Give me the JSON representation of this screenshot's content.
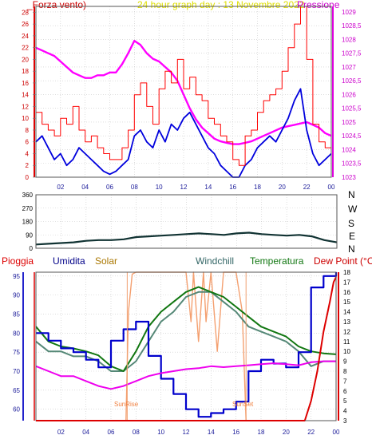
{
  "header": {
    "left": "_Forza vento)",
    "center": "24 hour graph day : 13 Novembre 2022",
    "right": "Pressione"
  },
  "cardinals": [
    "N",
    "W",
    "S",
    "E",
    "N"
  ],
  "bottom_labels": {
    "pioggia": "Pioggia",
    "umidita": "Umidita",
    "solar": "Solar",
    "windchill": "Windchill",
    "temperatura": "Temperatura",
    "dewpoint": "Dew Point (°C)",
    "sunrise": "SunRise",
    "sunset": "SunSet"
  },
  "colors": {
    "frame": "#555555",
    "wind": "#ff0000",
    "gust": "#0000dd",
    "pressure": "#ff00ff",
    "direction": "#113333",
    "humidity": "#0000cc",
    "temperature": "#117711",
    "windchill": "#558877",
    "solar": "#f4a070",
    "rain": "#dd0000",
    "dewpoint": "#ee00ee"
  },
  "chart_data": [
    {
      "type": "line",
      "title": "24 hour graph day : 13 Novembre 2022",
      "x_ticks": [
        "02",
        "04",
        "06",
        "08",
        "10",
        "12",
        "14",
        "16",
        "18",
        "20",
        "22",
        "00"
      ],
      "y_left_ticks": [
        "0",
        "2",
        "4",
        "6",
        "8",
        "10",
        "12",
        "14",
        "16",
        "18",
        "20",
        "22",
        "24",
        "26",
        "28"
      ],
      "y_left_label": "_Forza vento)",
      "y_left_range": [
        0,
        29
      ],
      "y_right_ticks": [
        "1023",
        "1023,5",
        "1024",
        "1024,5",
        "1025",
        "1025,5",
        "1026",
        "1026,5",
        "1027",
        "1027,5",
        "1028",
        "1028,5",
        "1029"
      ],
      "y_right_label": "Pressione",
      "y_right_range": [
        1023,
        1029.2
      ],
      "x_range": [
        0,
        24
      ],
      "series": [
        {
          "name": "Pressione",
          "axis": "right",
          "color": "#ff00ff",
          "x": [
            0,
            0.5,
            1,
            1.5,
            2,
            2.5,
            3,
            3.5,
            4,
            4.5,
            5,
            5.5,
            6,
            6.5,
            7,
            7.5,
            8,
            8.5,
            9,
            9.5,
            10,
            10.5,
            11,
            11.5,
            12,
            12.5,
            13,
            13.5,
            14,
            14.5,
            15,
            15.5,
            16,
            16.5,
            17,
            17.5,
            18,
            18.5,
            19,
            19.5,
            20,
            20.5,
            21,
            21.5,
            22,
            22.5,
            23,
            23.5,
            24
          ],
          "y": [
            1027.7,
            1027.6,
            1027.5,
            1027.4,
            1027.2,
            1027,
            1026.8,
            1026.7,
            1026.6,
            1026.6,
            1026.7,
            1026.7,
            1026.8,
            1026.8,
            1027.1,
            1027.5,
            1027.95,
            1027.8,
            1027.5,
            1027.3,
            1027.2,
            1027,
            1026.8,
            1026.5,
            1026,
            1025.5,
            1025.1,
            1024.8,
            1024.6,
            1024.4,
            1024.3,
            1024.25,
            1024.2,
            1024.2,
            1024.25,
            1024.3,
            1024.4,
            1024.5,
            1024.6,
            1024.7,
            1024.8,
            1024.85,
            1024.9,
            1024.95,
            1025,
            1024.9,
            1024.8,
            1024.6,
            1024.5
          ]
        },
        {
          "name": "Forza vento media",
          "axis": "left",
          "color": "#0000dd",
          "x": [
            0,
            0.5,
            1,
            1.5,
            2,
            2.5,
            3,
            3.5,
            4,
            4.5,
            5,
            5.5,
            6,
            6.5,
            7,
            7.5,
            8,
            8.5,
            9,
            9.5,
            10,
            10.5,
            11,
            11.5,
            12,
            12.5,
            13,
            13.5,
            14,
            14.5,
            15,
            15.5,
            16,
            16.5,
            17,
            17.5,
            18,
            18.5,
            19,
            19.5,
            20,
            20.5,
            21,
            21.5,
            22,
            22.5,
            23,
            23.5,
            24
          ],
          "y": [
            6,
            7,
            5,
            3,
            4,
            2,
            3,
            5,
            4,
            3,
            2,
            1,
            0.5,
            1,
            2,
            3,
            7,
            8,
            6,
            5,
            8,
            6,
            9,
            8,
            10,
            11,
            9,
            7,
            5,
            4,
            2,
            1,
            0,
            0,
            2,
            3,
            5,
            6,
            7,
            6,
            8,
            10,
            13,
            15,
            8,
            4,
            2,
            3,
            4
          ]
        },
        {
          "name": "Forza vento raffica",
          "axis": "left",
          "color": "#ff0000",
          "x": [
            0,
            0.5,
            1,
            1.5,
            2,
            2.5,
            3,
            3.5,
            4,
            4.5,
            5,
            5.5,
            6,
            6.5,
            7,
            7.5,
            8,
            8.5,
            9,
            9.5,
            10,
            10.5,
            11,
            11.5,
            12,
            12.5,
            13,
            13.5,
            14,
            14.5,
            15,
            15.5,
            16,
            16.5,
            17,
            17.5,
            18,
            18.5,
            19,
            19.5,
            20,
            20.5,
            21,
            21.5,
            22,
            22.5,
            23,
            23.5,
            24
          ],
          "y": [
            11,
            9,
            8,
            7,
            10,
            9,
            12,
            8,
            6,
            7,
            5,
            4,
            3,
            3,
            5,
            8,
            14,
            16,
            12,
            9,
            15,
            18,
            16,
            20,
            15,
            17,
            14,
            13,
            10,
            9,
            7,
            6,
            3,
            2,
            7,
            8,
            11,
            13,
            14,
            15,
            18,
            22,
            26,
            29,
            20,
            9,
            6,
            5,
            7
          ]
        }
      ]
    },
    {
      "type": "line",
      "title": "",
      "y_left_ticks": [
        "0",
        "90",
        "180",
        "270",
        "360"
      ],
      "y_left_range": [
        0,
        360
      ],
      "y_right_ticks": [
        "N",
        "W",
        "S",
        "E",
        "N"
      ],
      "x_range": [
        0,
        24
      ],
      "series": [
        {
          "name": "Direzione vento",
          "color": "#113333",
          "x": [
            0,
            1,
            2,
            3,
            4,
            5,
            6,
            7,
            8,
            9,
            10,
            11,
            12,
            13,
            14,
            15,
            16,
            17,
            18,
            19,
            20,
            21,
            22,
            23,
            24
          ],
          "y": [
            25,
            30,
            35,
            40,
            50,
            55,
            55,
            60,
            75,
            80,
            85,
            90,
            95,
            100,
            95,
            90,
            100,
            105,
            95,
            90,
            85,
            90,
            80,
            55,
            40
          ]
        }
      ]
    },
    {
      "type": "line",
      "title": "",
      "x_ticks": [
        "02",
        "04",
        "06",
        "08",
        "10",
        "12",
        "14",
        "16",
        "18",
        "20",
        "22",
        "00"
      ],
      "y_left_ticks": [
        "60",
        "65",
        "70",
        "75",
        "80",
        "85",
        "90",
        "95"
      ],
      "y_left_label": "Umidita",
      "y_left_range": [
        57,
        96
      ],
      "y_right_ticks": [
        "3",
        "4",
        "5",
        "6",
        "7",
        "8",
        "9",
        "10",
        "11",
        "12",
        "13",
        "14",
        "15",
        "16",
        "17",
        "18"
      ],
      "y_right_label": "Dew Point (°C)",
      "y_right_range": [
        3,
        18
      ],
      "x_range": [
        0,
        24
      ],
      "annotations": [
        "SunRise",
        "SunSet"
      ],
      "series": [
        {
          "name": "Umidita",
          "axis": "left",
          "color": "#0000cc",
          "x": [
            0,
            1,
            2,
            3,
            4,
            5,
            6,
            7,
            8,
            9,
            10,
            11,
            12,
            13,
            14,
            15,
            16,
            17,
            18,
            19,
            20,
            21,
            22,
            23,
            24
          ],
          "y": [
            80,
            78,
            76,
            75,
            73,
            71,
            78,
            81,
            83,
            74,
            68,
            64,
            60,
            58,
            59,
            60,
            62,
            70,
            73,
            72,
            71,
            75,
            92,
            95,
            96
          ]
        },
        {
          "name": "Temperatura",
          "axis": "right",
          "color": "#117711",
          "x": [
            0,
            1,
            2,
            3,
            4,
            5,
            6,
            7,
            8,
            9,
            10,
            11,
            12,
            13,
            14,
            15,
            16,
            17,
            18,
            19,
            20,
            21,
            22,
            23,
            24
          ],
          "y": [
            12.5,
            11,
            10.5,
            10.3,
            10,
            9.6,
            8.5,
            8,
            10,
            12.5,
            14,
            15,
            16,
            16.5,
            16,
            15.5,
            14.5,
            13.5,
            12.5,
            12,
            11.5,
            10.5,
            10,
            9.8,
            9.7
          ]
        },
        {
          "name": "Windchill",
          "axis": "right",
          "color": "#558877",
          "x": [
            0,
            1,
            2,
            3,
            4,
            5,
            6,
            7,
            8,
            9,
            10,
            11,
            12,
            13,
            14,
            15,
            16,
            17,
            18,
            19,
            20,
            21,
            22,
            23,
            24
          ],
          "y": [
            11,
            10,
            10,
            9.5,
            9.5,
            9,
            8,
            8,
            9,
            11,
            13,
            14,
            15.5,
            16,
            16,
            15,
            14,
            12.5,
            12,
            11.5,
            11,
            10,
            8.5,
            9,
            9
          ]
        },
        {
          "name": "Dew Point",
          "axis": "right",
          "color": "#ee00ee",
          "x": [
            0,
            1,
            2,
            3,
            4,
            5,
            6,
            7,
            8,
            9,
            10,
            11,
            12,
            13,
            14,
            15,
            16,
            17,
            18,
            19,
            20,
            21,
            22,
            23,
            24
          ],
          "y": [
            8.5,
            8,
            7.5,
            7.5,
            7,
            6.5,
            6.2,
            6.5,
            7,
            7.5,
            7.8,
            8,
            8.2,
            8.3,
            8.5,
            8.4,
            8.5,
            8.6,
            8.7,
            8.8,
            8.7,
            8.6,
            8.9,
            9,
            9
          ]
        },
        {
          "name": "Solar",
          "axis": "right",
          "color": "#f4a070",
          "x": [
            7.2,
            7.4,
            7.7,
            8,
            9,
            10,
            11,
            12,
            12.4,
            12.6,
            13,
            13.4,
            13.6,
            14,
            14.5,
            15,
            16,
            16.5,
            16.8,
            17
          ],
          "y": [
            3,
            14,
            17.8,
            18,
            18,
            18,
            18,
            18,
            13,
            18,
            11,
            18,
            13,
            18,
            10,
            18,
            18,
            14,
            3,
            3
          ]
        },
        {
          "name": "Pioggia",
          "axis": "right",
          "color": "#dd0000",
          "x": [
            0,
            21.5,
            22,
            22.5,
            23,
            23.5,
            23.8,
            24
          ],
          "y": [
            3,
            3,
            5,
            8,
            12,
            15,
            17,
            17.5
          ]
        }
      ]
    }
  ]
}
